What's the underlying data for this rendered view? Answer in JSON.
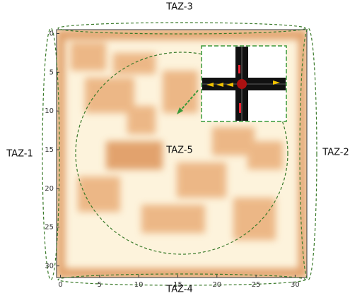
{
  "chart_data": {
    "type": "heatmap",
    "xlim": [
      -0.5,
      31.5
    ],
    "ylim": [
      -0.5,
      31.5
    ],
    "y_inverted": true,
    "xticks": [
      0,
      5,
      10,
      15,
      20,
      25,
      30
    ],
    "yticks": [
      0,
      5,
      10,
      15,
      20,
      25,
      30
    ],
    "annotations": [
      "TAZ-1",
      "TAZ-2",
      "TAZ-3",
      "TAZ-4",
      "TAZ-5"
    ]
  }
}
